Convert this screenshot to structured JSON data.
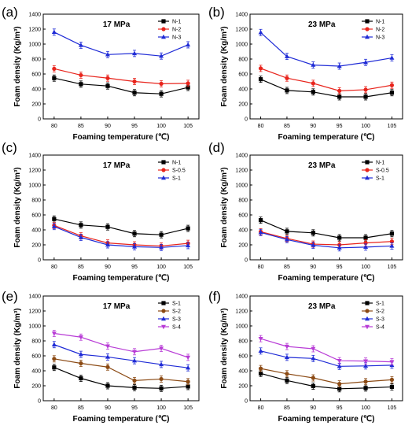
{
  "chart_data": [
    {
      "panel_label": "(a)",
      "type": "line",
      "title": "17 MPa",
      "xlabel": "Foaming temperature (℃)",
      "ylabel": "Foam density (Kg/m³)",
      "x": [
        80,
        85,
        90,
        95,
        100,
        105
      ],
      "x_ticks": [
        "80",
        "85",
        "90",
        "95",
        "100",
        "105"
      ],
      "ylim": [
        0,
        1400
      ],
      "y_ticks": [
        "0",
        "200",
        "400",
        "600",
        "800",
        "1000",
        "1200",
        "1400"
      ],
      "legend_position": "top-right",
      "series": [
        {
          "name": "N-1",
          "color": "#000000",
          "marker": "square",
          "values": [
            545,
            465,
            440,
            350,
            335,
            420
          ]
        },
        {
          "name": "N-2",
          "color": "#e8241c",
          "marker": "circle",
          "values": [
            670,
            585,
            545,
            500,
            470,
            475
          ]
        },
        {
          "name": "N-3",
          "color": "#1f2bd6",
          "marker": "triangle",
          "values": [
            1160,
            985,
            860,
            875,
            840,
            990
          ]
        }
      ]
    },
    {
      "panel_label": "(b)",
      "type": "line",
      "title": "23 MPa",
      "xlabel": "Foaming temperature (℃)",
      "ylabel": "Foam density (Kg/m³)",
      "x": [
        80,
        85,
        90,
        95,
        100,
        105
      ],
      "x_ticks": [
        "80",
        "85",
        "90",
        "95",
        "100",
        "105"
      ],
      "ylim": [
        0,
        1400
      ],
      "y_ticks": [
        "0",
        "200",
        "400",
        "600",
        "800",
        "1000",
        "1200",
        "1400"
      ],
      "legend_position": "top-right",
      "series": [
        {
          "name": "N-1",
          "color": "#000000",
          "marker": "square",
          "values": [
            530,
            380,
            360,
            295,
            295,
            350
          ]
        },
        {
          "name": "N-2",
          "color": "#e8241c",
          "marker": "circle",
          "values": [
            675,
            545,
            475,
            375,
            390,
            450
          ]
        },
        {
          "name": "N-3",
          "color": "#1f2bd6",
          "marker": "triangle",
          "values": [
            1155,
            835,
            720,
            705,
            755,
            815
          ]
        }
      ]
    },
    {
      "panel_label": "(c)",
      "type": "line",
      "title": "17 MPa",
      "xlabel": "Foaming temperature (℃)",
      "ylabel": "Foam density (Kg/m³)",
      "x": [
        80,
        85,
        90,
        95,
        100,
        105
      ],
      "x_ticks": [
        "80",
        "85",
        "90",
        "95",
        "100",
        "105"
      ],
      "ylim": [
        0,
        1400
      ],
      "y_ticks": [
        "0",
        "200",
        "400",
        "600",
        "800",
        "1000",
        "1200",
        "1400"
      ],
      "legend_position": "top-right",
      "series": [
        {
          "name": "N-1",
          "color": "#000000",
          "marker": "square",
          "values": [
            545,
            465,
            440,
            350,
            335,
            420
          ]
        },
        {
          "name": "S-0.5",
          "color": "#e8241c",
          "marker": "circle",
          "values": [
            460,
            320,
            225,
            200,
            185,
            220
          ]
        },
        {
          "name": "S-1",
          "color": "#1f2bd6",
          "marker": "triangle",
          "values": [
            445,
            300,
            200,
            175,
            165,
            190
          ]
        }
      ]
    },
    {
      "panel_label": "(d)",
      "type": "line",
      "title": "23 MPa",
      "xlabel": "Foaming temperature (℃)",
      "ylabel": "Foam density (Kg/m³)",
      "x": [
        80,
        85,
        90,
        95,
        100,
        105
      ],
      "x_ticks": [
        "80",
        "85",
        "90",
        "95",
        "100",
        "105"
      ],
      "ylim": [
        0,
        1400
      ],
      "y_ticks": [
        "0",
        "200",
        "400",
        "600",
        "800",
        "1000",
        "1200",
        "1400"
      ],
      "legend_position": "top-right",
      "series": [
        {
          "name": "N-1",
          "color": "#000000",
          "marker": "square",
          "values": [
            530,
            380,
            360,
            295,
            295,
            350
          ]
        },
        {
          "name": "S-0.5",
          "color": "#e8241c",
          "marker": "circle",
          "values": [
            375,
            285,
            210,
            200,
            225,
            245
          ]
        },
        {
          "name": "S-1",
          "color": "#1f2bd6",
          "marker": "triangle",
          "values": [
            365,
            270,
            195,
            160,
            170,
            185
          ]
        }
      ]
    },
    {
      "panel_label": "(e)",
      "type": "line",
      "title": "17 MPa",
      "xlabel": "Foaming temperature (℃)",
      "ylabel": "Foam density (Kg/m³)",
      "x": [
        80,
        85,
        90,
        95,
        100,
        105
      ],
      "x_ticks": [
        "80",
        "85",
        "90",
        "95",
        "100",
        "105"
      ],
      "ylim": [
        0,
        1400
      ],
      "y_ticks": [
        "0",
        "200",
        "400",
        "600",
        "800",
        "1000",
        "1200",
        "1400"
      ],
      "legend_position": "top-right",
      "series": [
        {
          "name": "S-1",
          "color": "#000000",
          "marker": "square",
          "values": [
            445,
            300,
            200,
            175,
            165,
            190
          ]
        },
        {
          "name": "S-2",
          "color": "#8b4a14",
          "marker": "circle",
          "values": [
            560,
            500,
            450,
            270,
            290,
            255
          ]
        },
        {
          "name": "S-3",
          "color": "#1f2bd6",
          "marker": "triangle",
          "values": [
            750,
            620,
            585,
            535,
            485,
            440
          ]
        },
        {
          "name": "S-4",
          "color": "#b83cd6",
          "marker": "triangle-down",
          "values": [
            900,
            850,
            730,
            655,
            700,
            580
          ]
        }
      ]
    },
    {
      "panel_label": "(f)",
      "type": "line",
      "title": "23 MPa",
      "xlabel": "Foaming temperature (℃)",
      "ylabel": "Foam density (Kg/m³)",
      "x": [
        80,
        85,
        90,
        95,
        100,
        105
      ],
      "x_ticks": [
        "80",
        "85",
        "90",
        "95",
        "100",
        "105"
      ],
      "ylim": [
        0,
        1400
      ],
      "y_ticks": [
        "0",
        "200",
        "400",
        "600",
        "800",
        "1000",
        "1200",
        "1400"
      ],
      "legend_position": "top-right",
      "series": [
        {
          "name": "S-1",
          "color": "#000000",
          "marker": "square",
          "values": [
            365,
            270,
            195,
            160,
            170,
            185
          ]
        },
        {
          "name": "S-2",
          "color": "#8b4a14",
          "marker": "circle",
          "values": [
            430,
            360,
            305,
            225,
            255,
            280
          ]
        },
        {
          "name": "S-3",
          "color": "#1f2bd6",
          "marker": "triangle",
          "values": [
            665,
            580,
            565,
            460,
            465,
            475
          ]
        },
        {
          "name": "S-4",
          "color": "#b83cd6",
          "marker": "triangle-down",
          "values": [
            830,
            725,
            695,
            535,
            530,
            520
          ]
        }
      ]
    }
  ]
}
